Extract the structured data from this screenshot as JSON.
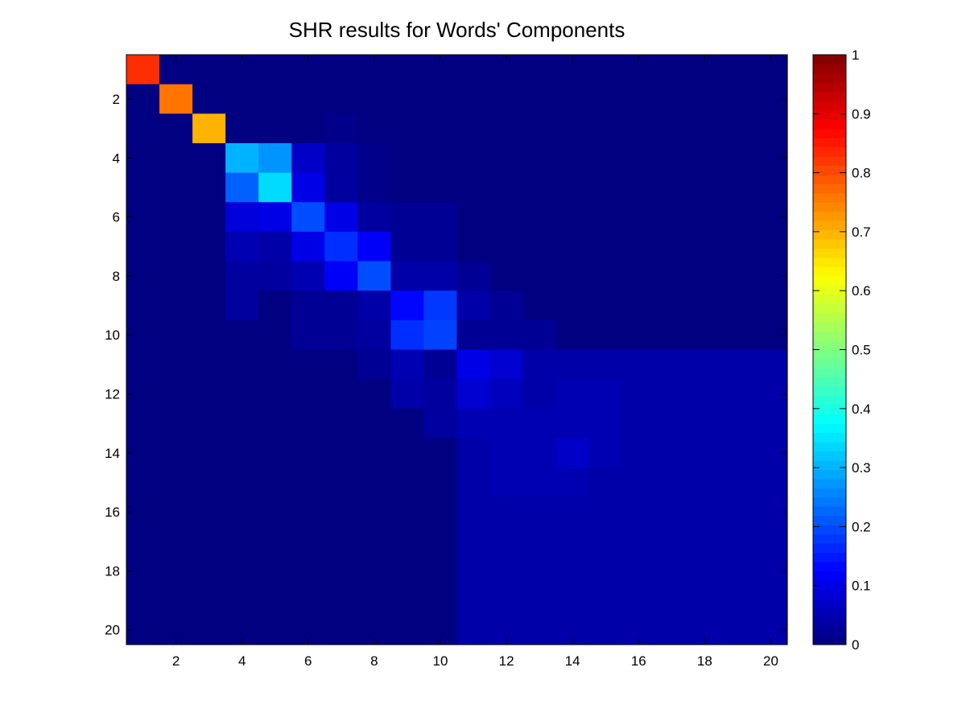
{
  "chart_data": {
    "type": "heatmap",
    "title": "SHR results for Words' Components",
    "xlabel": "",
    "ylabel": "",
    "rows": 20,
    "cols": 20,
    "x_ticks": [
      2,
      4,
      6,
      8,
      10,
      12,
      14,
      16,
      18,
      20
    ],
    "y_ticks": [
      2,
      4,
      6,
      8,
      10,
      12,
      14,
      16,
      18,
      20
    ],
    "colorbar": {
      "min": 0,
      "max": 1,
      "ticks": [
        0,
        0.1,
        0.2,
        0.3,
        0.4,
        0.5,
        0.6,
        0.7,
        0.8,
        0.9,
        1
      ],
      "colormap": "jet"
    },
    "values": [
      [
        0.83,
        0,
        0,
        0,
        0,
        0,
        0,
        0,
        0,
        0,
        0,
        0,
        0,
        0,
        0,
        0,
        0,
        0,
        0,
        0
      ],
      [
        0,
        0.76,
        0,
        0,
        0,
        0,
        0,
        0,
        0,
        0,
        0,
        0,
        0,
        0,
        0,
        0,
        0,
        0,
        0,
        0
      ],
      [
        0,
        0,
        0.7,
        0,
        0,
        0,
        0.01,
        0,
        0,
        0,
        0,
        0,
        0,
        0,
        0,
        0,
        0,
        0,
        0,
        0
      ],
      [
        0,
        0,
        0,
        0.3,
        0.27,
        0.07,
        0.03,
        0.01,
        0,
        0,
        0,
        0,
        0,
        0,
        0,
        0,
        0,
        0,
        0,
        0
      ],
      [
        0,
        0,
        0,
        0.22,
        0.34,
        0.1,
        0.03,
        0.01,
        0,
        0,
        0,
        0,
        0,
        0,
        0,
        0,
        0,
        0,
        0,
        0
      ],
      [
        0,
        0,
        0,
        0.09,
        0.1,
        0.2,
        0.1,
        0.03,
        0.02,
        0.02,
        0,
        0,
        0,
        0,
        0,
        0,
        0,
        0,
        0,
        0
      ],
      [
        0,
        0,
        0,
        0.05,
        0.04,
        0.1,
        0.17,
        0.12,
        0.02,
        0.02,
        0,
        0,
        0,
        0,
        0,
        0,
        0,
        0,
        0,
        0
      ],
      [
        0,
        0,
        0,
        0.03,
        0.03,
        0.05,
        0.12,
        0.2,
        0.04,
        0.04,
        0.02,
        0,
        0,
        0,
        0,
        0,
        0,
        0,
        0,
        0
      ],
      [
        0,
        0,
        0,
        0.03,
        0,
        0.02,
        0.02,
        0.04,
        0.13,
        0.18,
        0.04,
        0.02,
        0,
        0,
        0,
        0,
        0,
        0,
        0,
        0
      ],
      [
        0,
        0,
        0,
        0,
        0,
        0.02,
        0.02,
        0.03,
        0.17,
        0.19,
        0.02,
        0.02,
        0.02,
        0,
        0,
        0,
        0,
        0,
        0,
        0
      ],
      [
        0,
        0,
        0,
        0,
        0,
        0,
        0,
        0.02,
        0.05,
        0.02,
        0.1,
        0.08,
        0.04,
        0.04,
        0.04,
        0.04,
        0.04,
        0.04,
        0.04,
        0.04
      ],
      [
        0,
        0,
        0,
        0,
        0,
        0,
        0,
        0,
        0.04,
        0.03,
        0.08,
        0.06,
        0.04,
        0.05,
        0.05,
        0.04,
        0.04,
        0.04,
        0.04,
        0.04
      ],
      [
        0,
        0,
        0,
        0,
        0,
        0,
        0,
        0,
        0,
        0.03,
        0.05,
        0.05,
        0.05,
        0.05,
        0.05,
        0.04,
        0.04,
        0.04,
        0.04,
        0.04
      ],
      [
        0,
        0,
        0,
        0,
        0,
        0,
        0,
        0,
        0,
        0,
        0.04,
        0.05,
        0.05,
        0.07,
        0.05,
        0.04,
        0.04,
        0.04,
        0.04,
        0.04
      ],
      [
        0,
        0,
        0,
        0,
        0,
        0,
        0,
        0,
        0,
        0,
        0.04,
        0.05,
        0.05,
        0.05,
        0.04,
        0.04,
        0.04,
        0.04,
        0.04,
        0.04
      ],
      [
        0,
        0,
        0,
        0,
        0,
        0,
        0,
        0,
        0,
        0,
        0.04,
        0.04,
        0.04,
        0.04,
        0.04,
        0.04,
        0.04,
        0.04,
        0.04,
        0.04
      ],
      [
        0,
        0,
        0,
        0,
        0,
        0,
        0,
        0,
        0,
        0,
        0.04,
        0.04,
        0.04,
        0.04,
        0.04,
        0.04,
        0.04,
        0.04,
        0.04,
        0.04
      ],
      [
        0,
        0,
        0,
        0,
        0,
        0,
        0,
        0,
        0,
        0,
        0.04,
        0.04,
        0.04,
        0.04,
        0.04,
        0.04,
        0.04,
        0.04,
        0.04,
        0.04
      ],
      [
        0,
        0,
        0,
        0,
        0,
        0,
        0,
        0,
        0,
        0,
        0.04,
        0.04,
        0.04,
        0.04,
        0.04,
        0.04,
        0.04,
        0.04,
        0.04,
        0.04
      ],
      [
        0,
        0,
        0,
        0,
        0,
        0,
        0,
        0,
        0,
        0,
        0.04,
        0.04,
        0.04,
        0.04,
        0.04,
        0.04,
        0.04,
        0.04,
        0.04,
        0.04
      ]
    ]
  }
}
